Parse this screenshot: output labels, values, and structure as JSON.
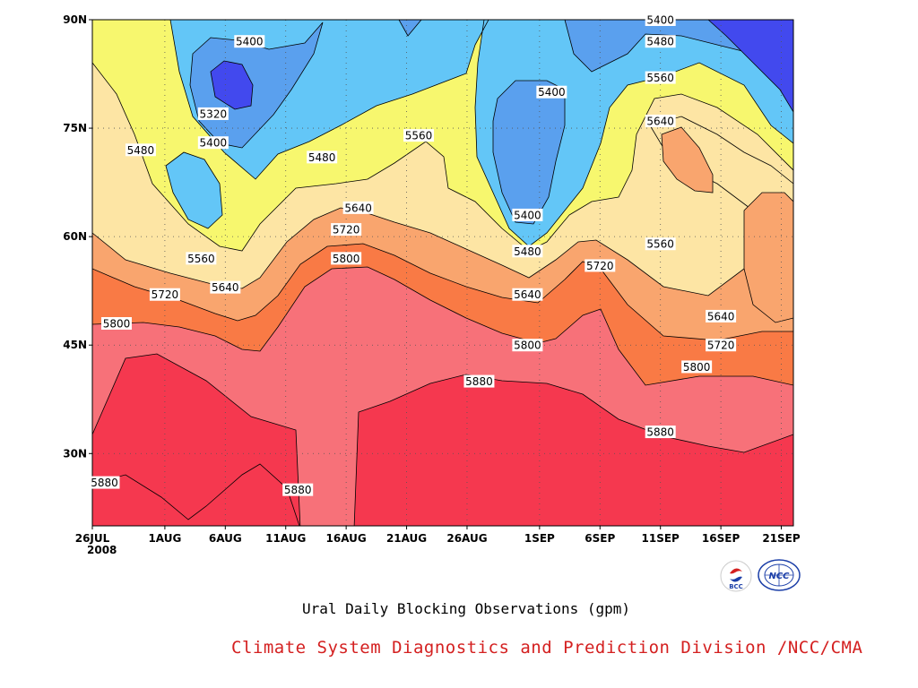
{
  "chart_data": {
    "type": "heatmap",
    "title": "Ural Daily Blocking Observations (gpm)",
    "footer": "Climate System Diagnostics and Prediction Division /NCC/CMA",
    "x_ticks": [
      "26JUL",
      "1AUG",
      "6AUG",
      "11AUG",
      "16AUG",
      "21AUG",
      "26AUG",
      "1SEP",
      "6SEP",
      "11SEP",
      "16SEP",
      "21SEP"
    ],
    "x_year": "2008",
    "y_ticks": [
      "90N",
      "75N",
      "60N",
      "45N",
      "30N"
    ],
    "ylim": [
      20,
      90
    ],
    "grid": true,
    "levels": [
      5320,
      5400,
      5480,
      5560,
      5640,
      5720,
      5800,
      5880
    ],
    "colors": {
      "c5240": "#4249ee",
      "c5320": "#5aa0ee",
      "c5400": "#63c6f7",
      "c5480": "#f7f76e",
      "c5560": "#fde5a4",
      "c5640": "#f9a56e",
      "c5720": "#f97a45",
      "c5800": "#f77179",
      "c5880": "#f5384f"
    },
    "contour_labels": [
      {
        "text": "5400",
        "date": "8AUG",
        "lat": 87
      },
      {
        "text": "5320",
        "date": "5AUG",
        "lat": 77
      },
      {
        "text": "5400",
        "date": "5AUG",
        "lat": 73
      },
      {
        "text": "5480",
        "date": "30JUL",
        "lat": 72
      },
      {
        "text": "5480",
        "date": "14AUG",
        "lat": 71
      },
      {
        "text": "5560",
        "date": "22AUG",
        "lat": 74
      },
      {
        "text": "5400",
        "date": "2SEP",
        "lat": 80
      },
      {
        "text": "5400",
        "date": "11SEP",
        "lat": 90
      },
      {
        "text": "5480",
        "date": "11SEP",
        "lat": 87
      },
      {
        "text": "5560",
        "date": "11SEP",
        "lat": 82
      },
      {
        "text": "5640",
        "date": "11SEP",
        "lat": 76
      },
      {
        "text": "5640",
        "date": "17AUG",
        "lat": 64
      },
      {
        "text": "5720",
        "date": "16AUG",
        "lat": 61
      },
      {
        "text": "5800",
        "date": "16AUG",
        "lat": 57
      },
      {
        "text": "5560",
        "date": "4AUG",
        "lat": 57
      },
      {
        "text": "5640",
        "date": "6AUG",
        "lat": 53
      },
      {
        "text": "5720",
        "date": "1AUG",
        "lat": 52
      },
      {
        "text": "5800",
        "date": "28JUL",
        "lat": 48
      },
      {
        "text": "5400",
        "date": "31AUG",
        "lat": 63
      },
      {
        "text": "5480",
        "date": "31AUG",
        "lat": 58
      },
      {
        "text": "5640",
        "date": "31AUG",
        "lat": 52
      },
      {
        "text": "5800",
        "date": "31AUG",
        "lat": 45
      },
      {
        "text": "5880",
        "date": "27AUG",
        "lat": 40
      },
      {
        "text": "5720",
        "date": "6SEP",
        "lat": 56
      },
      {
        "text": "5560",
        "date": "11SEP",
        "lat": 59
      },
      {
        "text": "5640",
        "date": "16SEP",
        "lat": 49
      },
      {
        "text": "5720",
        "date": "16SEP",
        "lat": 45
      },
      {
        "text": "5800",
        "date": "14SEP",
        "lat": 42
      },
      {
        "text": "5880",
        "date": "11SEP",
        "lat": 33
      },
      {
        "text": "5880",
        "date": "27JUL",
        "lat": 26
      },
      {
        "text": "5880",
        "date": "12AUG",
        "lat": 25
      }
    ]
  }
}
